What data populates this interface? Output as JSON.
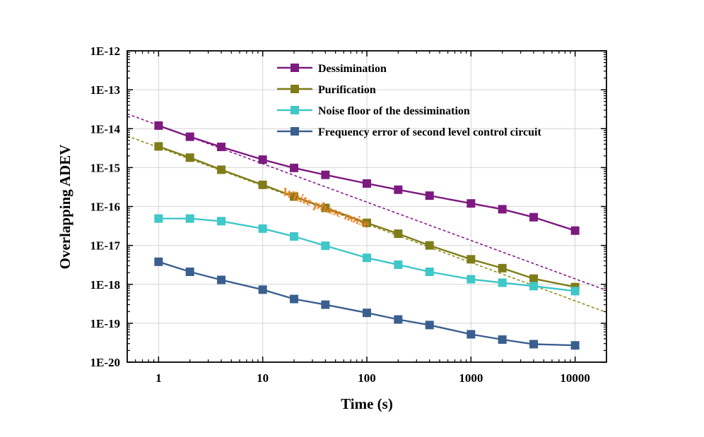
{
  "chart_data": {
    "type": "line",
    "xscale": "log",
    "yscale": "log",
    "xlim": [
      0.5,
      20000
    ],
    "ylim": [
      1e-20,
      1e-12
    ],
    "grid": true,
    "legend_position": "top-right",
    "xlabel": "Time (s)",
    "ylabel": "Overlapping ADEV",
    "x_tick_labels": [
      "1",
      "10",
      "100",
      "1000",
      "10000"
    ],
    "y_tick_labels": [
      "1E-12",
      "1E-13",
      "1E-14",
      "1E-15",
      "1E-16",
      "1E-17",
      "1E-18",
      "1E-19",
      "1E-20"
    ],
    "x": [
      1,
      2,
      4,
      10,
      20,
      40,
      100,
      200,
      400,
      1000,
      2000,
      4000,
      10000
    ],
    "series": [
      {
        "name": "Dessimination",
        "color": "#7d1a80",
        "values": [
          1.2e-14,
          6.2e-15,
          3.4e-15,
          1.6e-15,
          9.8e-16,
          6.5e-16,
          3.9e-16,
          2.7e-16,
          1.9e-16,
          1.2e-16,
          8.5e-17,
          5.3e-17,
          2.4e-17
        ]
      },
      {
        "name": "Purification",
        "color": "#7f7d1a",
        "values": [
          3.5e-15,
          1.8e-15,
          8.8e-16,
          3.6e-16,
          1.8e-16,
          9.2e-17,
          3.8e-17,
          2e-17,
          1e-17,
          4.4e-18,
          2.6e-18,
          1.4e-18,
          8.5e-19
        ]
      },
      {
        "name": "Noise floor of the dessimination",
        "color": "#3fc7c9",
        "values": [
          4.9e-17,
          4.9e-17,
          4.2e-17,
          2.7e-17,
          1.7e-17,
          9.8e-18,
          4.8e-18,
          3.2e-18,
          2.1e-18,
          1.35e-18,
          1.1e-18,
          9e-19,
          6.7e-19
        ]
      },
      {
        "name": "Frequency error of second level control circuit",
        "color": "#3a5f8f",
        "values": [
          3.8e-18,
          2.1e-18,
          1.3e-18,
          7.3e-19,
          4.2e-19,
          3e-19,
          1.85e-19,
          1.25e-19,
          9e-20,
          5.2e-20,
          3.8e-20,
          2.9e-20,
          2.7e-20
        ]
      }
    ],
    "reference_lines": [
      {
        "color": "#8b1a8b",
        "from": [
          0.5,
          2.4e-14
        ],
        "to": [
          20000,
          7e-19
        ]
      },
      {
        "color": "#8f8f1a",
        "from": [
          0.5,
          6.5e-15
        ],
        "to": [
          20000,
          1.9e-19
        ]
      }
    ],
    "annotations": [
      {
        "text": "White phase noise",
        "color": "#f07f24",
        "x": 15,
        "y": 2e-16
      }
    ]
  }
}
